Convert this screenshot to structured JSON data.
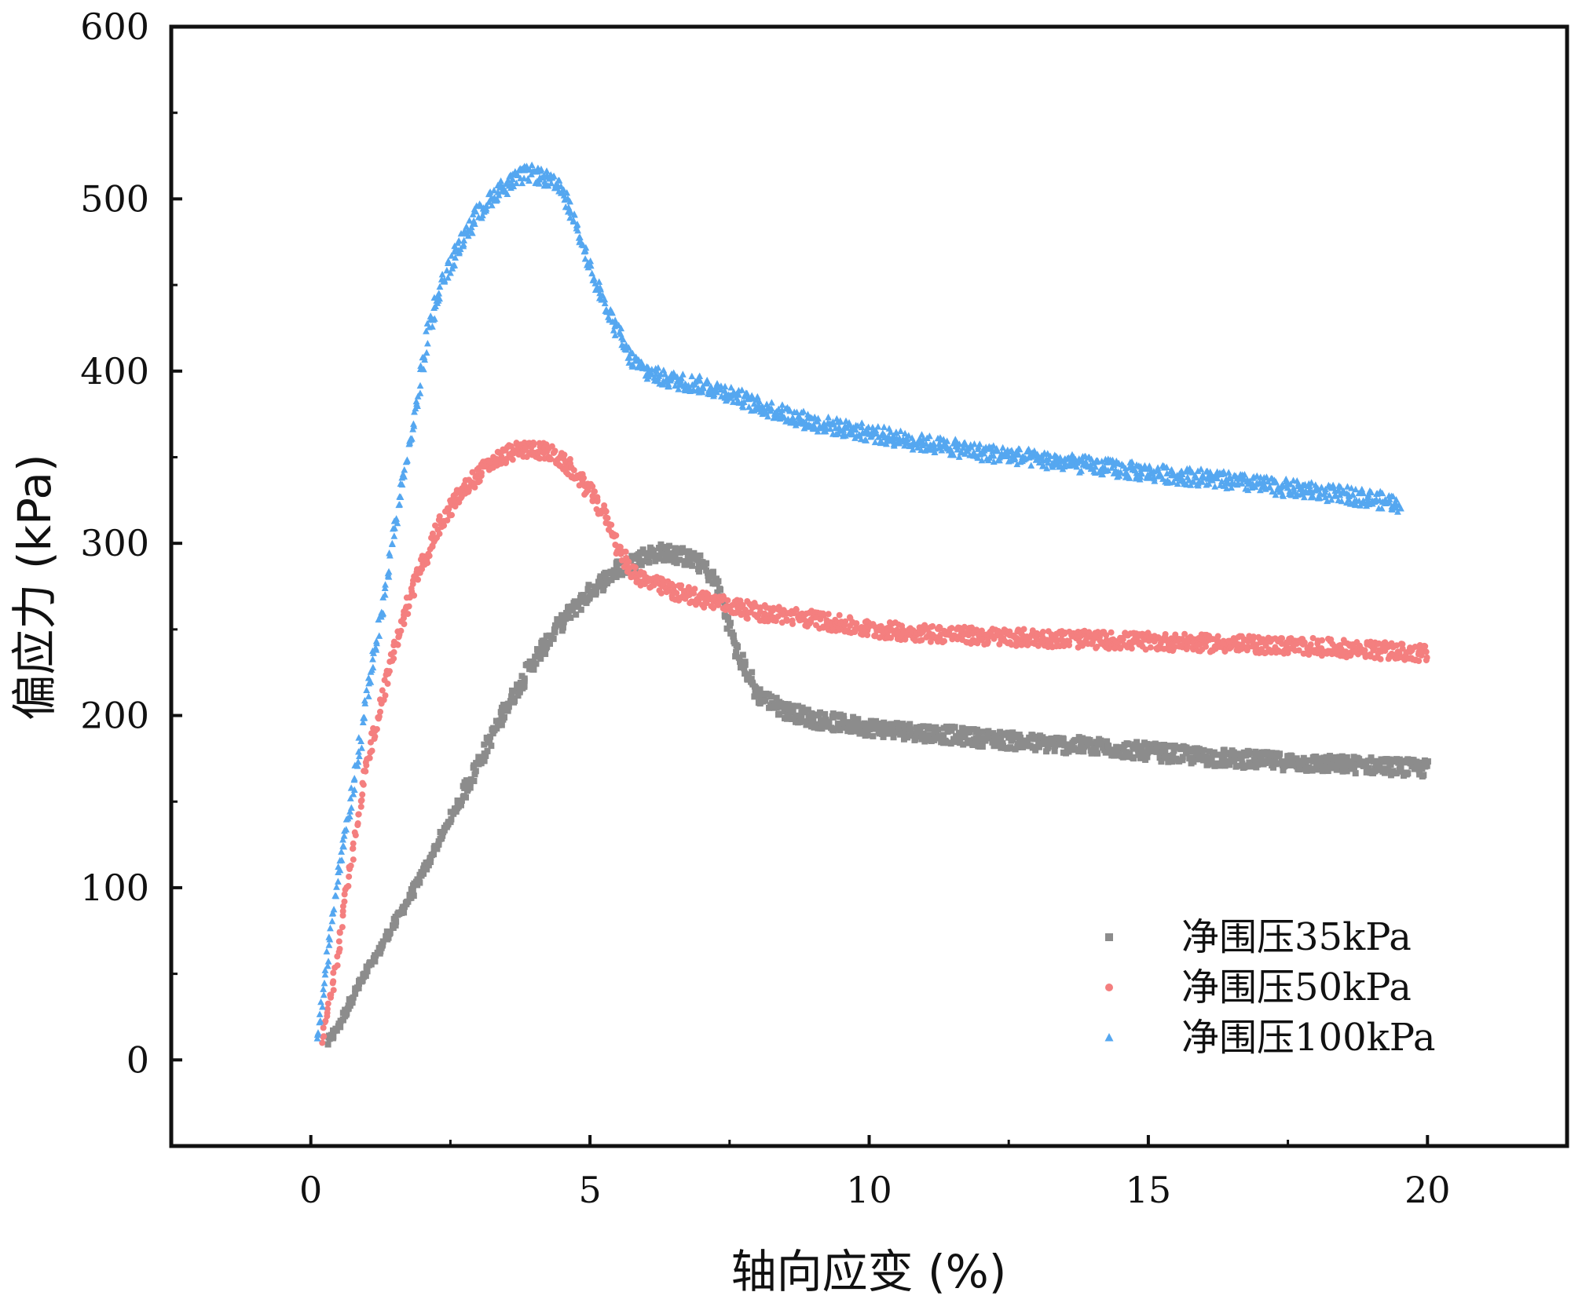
{
  "chart_data": {
    "type": "scatter",
    "title": "",
    "xlabel": "轴向应变 (%)",
    "ylabel": "偏应力 (kPa)",
    "xlim": [
      -2.5,
      22.5
    ],
    "ylim": [
      -50,
      600
    ],
    "x_ticks": [
      0,
      5,
      10,
      15,
      20
    ],
    "x_tick_labels": [
      "0",
      "5",
      "10",
      "15",
      "20"
    ],
    "y_ticks": [
      0,
      100,
      200,
      300,
      400,
      500,
      600
    ],
    "y_tick_labels": [
      "0",
      "100",
      "200",
      "300",
      "400",
      "500",
      "600"
    ],
    "grid": false,
    "legend_position": "bottom-right",
    "series": [
      {
        "name": "净围压35kPa",
        "color": "#8c8c8c",
        "marker": "square",
        "x": [
          0.3,
          0.5,
          0.8,
          1.2,
          1.6,
          2.0,
          2.5,
          3.0,
          3.5,
          4.0,
          4.5,
          5.0,
          5.5,
          6.0,
          6.3,
          6.6,
          7.0,
          7.3,
          7.6,
          8.0,
          8.5,
          9.0,
          10.0,
          11.0,
          12.0,
          13.0,
          14.0,
          15.0,
          16.0,
          17.0,
          18.0,
          19.0,
          20.0
        ],
        "values": [
          10,
          20,
          40,
          62,
          85,
          108,
          140,
          172,
          205,
          232,
          255,
          272,
          285,
          293,
          295,
          293,
          288,
          275,
          240,
          212,
          203,
          198,
          193,
          190,
          187,
          184,
          182,
          179,
          176,
          174,
          172,
          171,
          169
        ]
      },
      {
        "name": "净围压50kPa",
        "color": "#f47f7f",
        "marker": "circle",
        "x": [
          0.2,
          0.4,
          0.6,
          0.8,
          1.0,
          1.2,
          1.5,
          1.8,
          2.0,
          2.3,
          2.6,
          3.0,
          3.3,
          3.6,
          4.0,
          4.3,
          4.6,
          5.0,
          5.3,
          5.5,
          5.7,
          6.0,
          6.5,
          7.0,
          8.0,
          9.0,
          10.0,
          12.0,
          14.0,
          16.0,
          18.0,
          20.0
        ],
        "values": [
          10,
          45,
          90,
          130,
          170,
          200,
          240,
          270,
          288,
          310,
          325,
          340,
          348,
          353,
          355,
          352,
          345,
          330,
          315,
          298,
          285,
          278,
          272,
          268,
          260,
          256,
          250,
          246,
          244,
          242,
          240,
          236
        ]
      },
      {
        "name": "净围压100kPa",
        "color": "#55a7f0",
        "marker": "triangle",
        "x": [
          0.1,
          0.3,
          0.5,
          0.8,
          1.0,
          1.3,
          1.6,
          1.9,
          2.1,
          2.4,
          2.7,
          3.0,
          3.3,
          3.6,
          3.9,
          4.2,
          4.5,
          4.8,
          5.1,
          5.4,
          5.7,
          6.0,
          6.3,
          6.6,
          7.0,
          7.5,
          8.0,
          9.0,
          10.0,
          11.0,
          12.0,
          13.0,
          14.0,
          15.0,
          16.0,
          17.0,
          18.0,
          19.0,
          19.5
        ],
        "values": [
          10,
          60,
          110,
          165,
          210,
          265,
          330,
          380,
          425,
          455,
          475,
          492,
          503,
          510,
          515,
          512,
          505,
          482,
          450,
          430,
          408,
          400,
          396,
          394,
          392,
          387,
          380,
          370,
          364,
          358,
          353,
          349,
          345,
          341,
          338,
          334,
          330,
          326,
          323
        ]
      }
    ]
  }
}
